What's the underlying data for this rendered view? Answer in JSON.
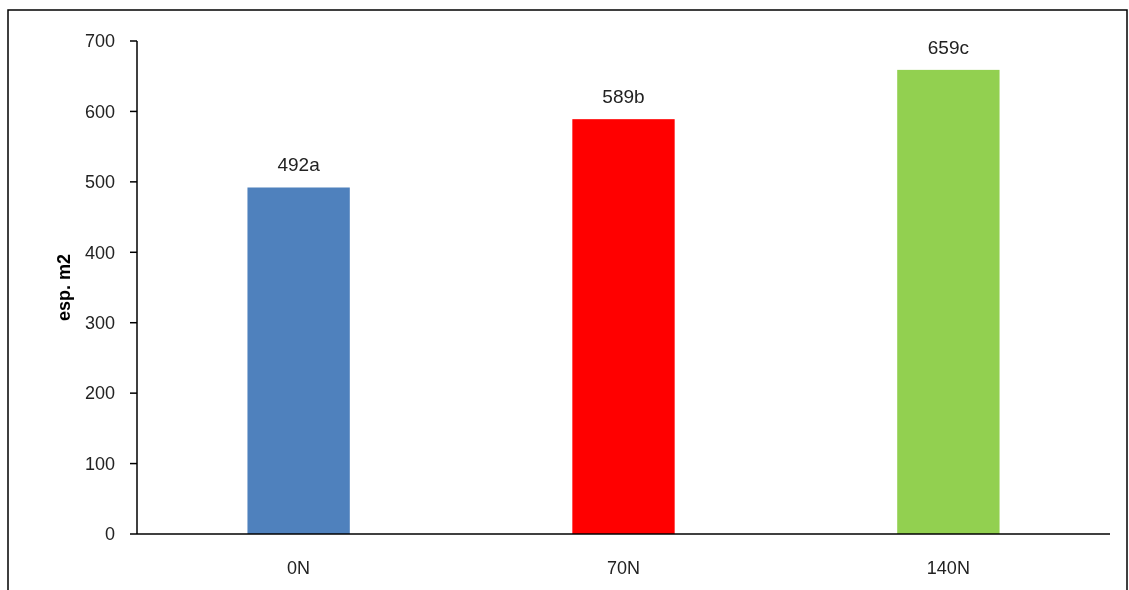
{
  "chart_data": {
    "type": "bar",
    "ylabel": "esp. m2",
    "categories": [
      "0N",
      "70N",
      "140N"
    ],
    "values": [
      492,
      589,
      659
    ],
    "colors": [
      "#4f81bd",
      "#ff0000",
      "#92d050"
    ],
    "value_labels": [
      "492a",
      "589b",
      "659c"
    ],
    "ylim": [
      0,
      700
    ],
    "yticks": [
      0,
      100,
      200,
      300,
      400,
      500,
      600,
      700
    ],
    "grid": false
  }
}
